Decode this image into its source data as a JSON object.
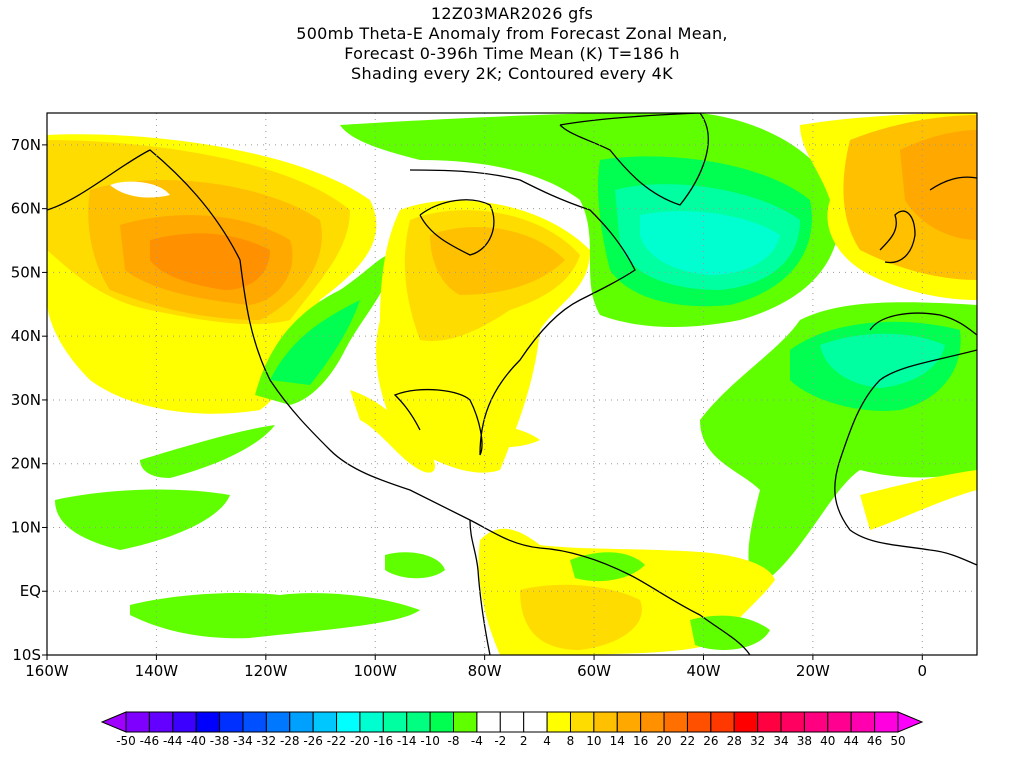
{
  "title": {
    "line1": "12Z03MAR2026 gfs",
    "line2": "500mb Theta-E Anomaly from Forecast Zonal Mean,",
    "line3": "Forecast 0-396h Time Mean (K) T=186 h",
    "line4": "Shading every 2K; Contoured every 4K"
  },
  "map": {
    "lon_range": [
      -160,
      10
    ],
    "lat_range": [
      -10,
      75
    ],
    "lat_labels": [
      {
        "value": 70,
        "text": "70N"
      },
      {
        "value": 60,
        "text": "60N"
      },
      {
        "value": 50,
        "text": "50N"
      },
      {
        "value": 40,
        "text": "40N"
      },
      {
        "value": 30,
        "text": "30N"
      },
      {
        "value": 20,
        "text": "20N"
      },
      {
        "value": 10,
        "text": "10N"
      },
      {
        "value": 0,
        "text": "EQ"
      },
      {
        "value": -10,
        "text": "10S"
      }
    ],
    "lon_labels": [
      {
        "value": -160,
        "text": "160W"
      },
      {
        "value": -140,
        "text": "140W"
      },
      {
        "value": -120,
        "text": "120W"
      },
      {
        "value": -100,
        "text": "100W"
      },
      {
        "value": -80,
        "text": "80W"
      },
      {
        "value": -60,
        "text": "60W"
      },
      {
        "value": -40,
        "text": "40W"
      },
      {
        "value": -20,
        "text": "20W"
      },
      {
        "value": 0,
        "text": "0"
      }
    ]
  },
  "colorbar": {
    "labels": [
      "-50",
      "-46",
      "-44",
      "-40",
      "-38",
      "-34",
      "-32",
      "-28",
      "-26",
      "-22",
      "-20",
      "-16",
      "-14",
      "-10",
      "-8",
      "-4",
      "-2",
      "2",
      "4",
      "8",
      "10",
      "14",
      "16",
      "20",
      "22",
      "26",
      "28",
      "32",
      "34",
      "38",
      "40",
      "44",
      "46",
      "50"
    ],
    "left_arrow_color": "#a000ff",
    "right_arrow_color": "#ff00ff",
    "colors": [
      "#8000ff",
      "#6400ff",
      "#3c00ff",
      "#0000ff",
      "#0030ff",
      "#0050ff",
      "#0078ff",
      "#00a0ff",
      "#00c8ff",
      "#00ffff",
      "#00ffd0",
      "#00ffa0",
      "#00ff80",
      "#00ff50",
      "#60ff00",
      "#ffffff",
      "#ffffff",
      "#ffffff",
      "#ffff00",
      "#ffdc00",
      "#ffc000",
      "#ffa800",
      "#ff9000",
      "#ff7000",
      "#ff5000",
      "#ff3800",
      "#ff0000",
      "#ff0040",
      "#ff0060",
      "#ff0080",
      "#ff0090",
      "#ff00b0",
      "#ff00e0"
    ]
  }
}
